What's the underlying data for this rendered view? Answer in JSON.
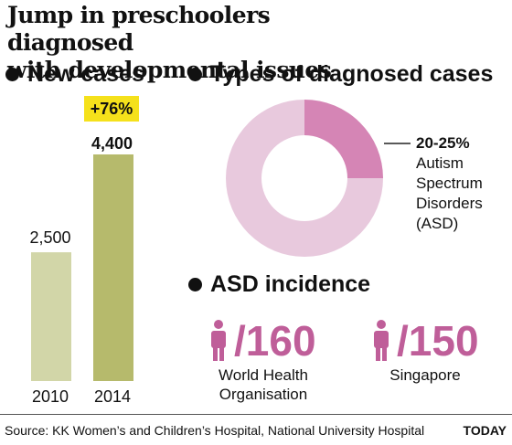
{
  "title_lines": [
    "Jump in preschoolers diagnosed",
    "with developmental issues"
  ],
  "sections": {
    "new_cases": "New cases",
    "types": "Types of diagnosed cases",
    "asd": "ASD incidence"
  },
  "colors": {
    "bar_2010": "#d2d6a8",
    "bar_2014": "#b6ba6c",
    "badge": "#f5e11b",
    "donut_main": "#e8c9dd",
    "donut_asd": "#d585b5",
    "accent": "#bf5e99"
  },
  "chart_data": [
    {
      "type": "bar",
      "title": "New cases",
      "categories": [
        "2010",
        "2014"
      ],
      "values": [
        2500,
        4400
      ],
      "value_labels": [
        "2,500",
        "4,400"
      ],
      "change_label": "+76%"
    },
    {
      "type": "pie",
      "title": "Types of diagnosed cases",
      "donut": true,
      "slices": [
        {
          "label": "Autism Spectrum Disorders (ASD)",
          "range_label": "20-25%",
          "value": 25
        },
        {
          "label": "",
          "value": 75
        }
      ],
      "annotation": {
        "pct": "20-25%",
        "lines": [
          "Autism",
          "Spectrum",
          "Disorders",
          "(ASD)"
        ]
      }
    }
  ],
  "asd_incidence": [
    {
      "value": "/160",
      "label_lines": [
        "World Health",
        "Organisation"
      ],
      "icon": "person-icon"
    },
    {
      "value": "/150",
      "label_lines": [
        "Singapore"
      ],
      "icon": "person-icon"
    }
  ],
  "footer": {
    "source": "Source: KK Women’s and Children’s Hospital, National University Hospital",
    "brand": "TODAY"
  }
}
